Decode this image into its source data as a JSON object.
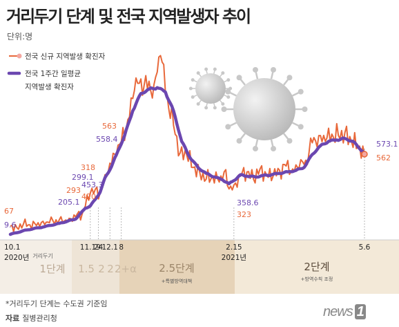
{
  "title": "거리두기 단계 및 전국 지역발생자 추이",
  "unit": "단위:명",
  "footnote": "*거리두기 단계는 수도권 기준임",
  "source_label": "자료",
  "source": "질병관리청",
  "brand": {
    "text": "news",
    "mark": "1"
  },
  "colors": {
    "daily": "#e8683a",
    "avg": "#6b47b0",
    "band_dark": "#ebd9bf",
    "band_light": "#f6ecdc"
  },
  "legend": [
    {
      "label": "전국 신규 지역발생 확진자"
    },
    {
      "label": "전국 1주간 일평균",
      "label2": "지역발생 확진자"
    }
  ],
  "stages": [
    {
      "label_small": "거리두기",
      "label": "1단계",
      "sub": ""
    },
    {
      "label_small": "",
      "label": "1.5",
      "sub": ""
    },
    {
      "label_small": "",
      "label": "2",
      "sub": ""
    },
    {
      "label_small": "",
      "label": "2",
      "sub": ""
    },
    {
      "label_small": "",
      "label": "2+α",
      "sub": ""
    },
    {
      "label_small": "",
      "label": "2.5단계",
      "sub": "+특별방역대책"
    },
    {
      "label_small": "",
      "label": "2단계",
      "sub": "+방역수칙 조정"
    }
  ],
  "chart_data": {
    "type": "line",
    "x_ticks": [
      {
        "day": 0,
        "label": "10.1",
        "label2": "2020년"
      },
      {
        "day": 49,
        "label": "11.19",
        "label2": ""
      },
      {
        "day": 54,
        "label": "24",
        "label2": ""
      },
      {
        "day": 61,
        "label": "12.1",
        "label2": ""
      },
      {
        "day": 68,
        "label": "8",
        "label2": ""
      },
      {
        "day": 137,
        "label": "2.15",
        "label2": "2021년"
      },
      {
        "day": 217,
        "label": "5.6",
        "label2": ""
      }
    ],
    "ylim": [
      0,
      1300
    ],
    "series": [
      {
        "name": "전국 신규 지역발생 확진자",
        "anchors": [
          [
            0,
            67
          ],
          [
            4,
            55
          ],
          [
            8,
            80
          ],
          [
            12,
            75
          ],
          [
            16,
            70
          ],
          [
            20,
            100
          ],
          [
            24,
            90
          ],
          [
            28,
            110
          ],
          [
            32,
            95
          ],
          [
            36,
            120
          ],
          [
            40,
            130
          ],
          [
            44,
            150
          ],
          [
            46,
            205
          ],
          [
            49,
            293
          ],
          [
            52,
            318
          ],
          [
            55,
            300
          ],
          [
            58,
            420
          ],
          [
            61,
            500
          ],
          [
            65,
            563
          ],
          [
            68,
            650
          ],
          [
            72,
            800
          ],
          [
            76,
            1000
          ],
          [
            80,
            1080
          ],
          [
            84,
            1010
          ],
          [
            88,
            1040
          ],
          [
            92,
            1241
          ],
          [
            96,
            970
          ],
          [
            100,
            760
          ],
          [
            104,
            570
          ],
          [
            108,
            560
          ],
          [
            112,
            470
          ],
          [
            116,
            440
          ],
          [
            120,
            390
          ],
          [
            124,
            410
          ],
          [
            128,
            370
          ],
          [
            132,
            455
          ],
          [
            134,
            323
          ],
          [
            137,
            350
          ],
          [
            141,
            410
          ],
          [
            145,
            440
          ],
          [
            149,
            390
          ],
          [
            153,
            460
          ],
          [
            157,
            420
          ],
          [
            161,
            410
          ],
          [
            165,
            450
          ],
          [
            169,
            480
          ],
          [
            173,
            460
          ],
          [
            177,
            470
          ],
          [
            181,
            520
          ],
          [
            185,
            640
          ],
          [
            189,
            690
          ],
          [
            193,
            650
          ],
          [
            197,
            700
          ],
          [
            201,
            690
          ],
          [
            205,
            710
          ],
          [
            209,
            650
          ],
          [
            213,
            610
          ],
          [
            217,
            562
          ]
        ],
        "wiggle": 65
      },
      {
        "name": "전국 1주간 일평균 지역발생 확진자",
        "anchors": [
          [
            0,
            9.6
          ],
          [
            10,
            40
          ],
          [
            20,
            60
          ],
          [
            30,
            85
          ],
          [
            40,
            115
          ],
          [
            46,
            190
          ],
          [
            49,
            205.1
          ],
          [
            52,
            250
          ],
          [
            55,
            299.1
          ],
          [
            58,
            400
          ],
          [
            61,
            453.3
          ],
          [
            65,
            558.4
          ],
          [
            70,
            690
          ],
          [
            75,
            860
          ],
          [
            80,
            980
          ],
          [
            85,
            1010
          ],
          [
            90,
            1020
          ],
          [
            95,
            990
          ],
          [
            100,
            860
          ],
          [
            105,
            650
          ],
          [
            110,
            540
          ],
          [
            115,
            470
          ],
          [
            120,
            430
          ],
          [
            125,
            405
          ],
          [
            130,
            385
          ],
          [
            134,
            358.6
          ],
          [
            137,
            380
          ],
          [
            141,
            420
          ],
          [
            145,
            410
          ],
          [
            150,
            405
          ],
          [
            155,
            415
          ],
          [
            160,
            420
          ],
          [
            165,
            430
          ],
          [
            170,
            440
          ],
          [
            175,
            450
          ],
          [
            180,
            470
          ],
          [
            185,
            560
          ],
          [
            190,
            620
          ],
          [
            195,
            650
          ],
          [
            200,
            660
          ],
          [
            205,
            670
          ],
          [
            210,
            650
          ],
          [
            214,
            600
          ],
          [
            217,
            573.1
          ]
        ],
        "wiggle": 10
      }
    ],
    "value_labels": {
      "daily": [
        {
          "day": 0,
          "value": 67
        },
        {
          "day": 49,
          "value": 293
        },
        {
          "day": 52,
          "value": 318
        },
        {
          "day": 58,
          "value": 420
        },
        {
          "day": 65,
          "value": 563
        },
        {
          "day": 134,
          "value": 323
        },
        {
          "day": 217,
          "value": 562
        }
      ],
      "avg": [
        {
          "day": 0,
          "value": 9.6
        },
        {
          "day": 49,
          "value": 205.1
        },
        {
          "day": 55,
          "value": 299.1
        },
        {
          "day": 61,
          "value": 453.3
        },
        {
          "day": 65,
          "value": 558.4
        },
        {
          "day": 134,
          "value": 358.6
        },
        {
          "day": 217,
          "value": 573.1
        }
      ]
    }
  }
}
